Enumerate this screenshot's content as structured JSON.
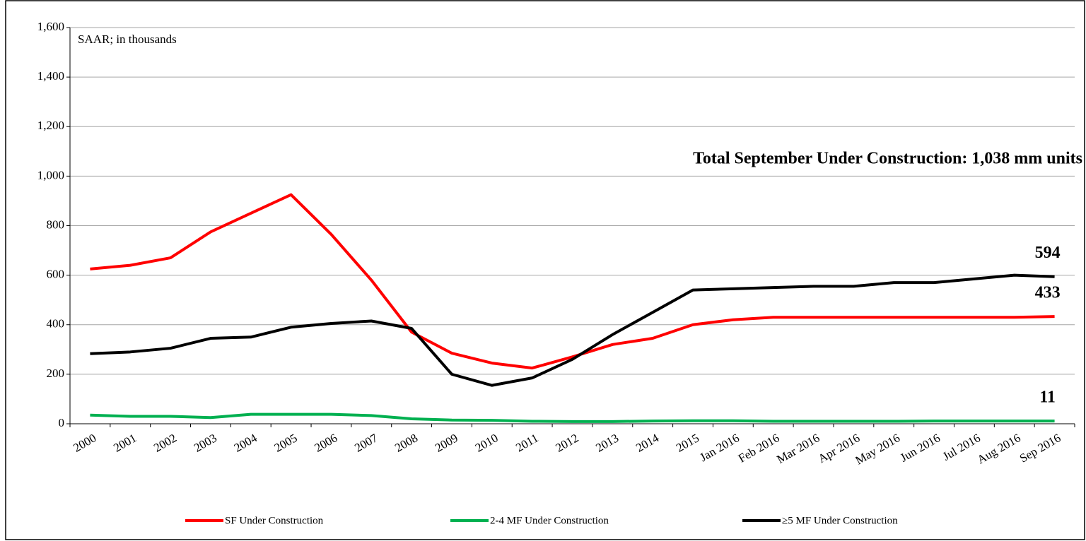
{
  "chart_data": {
    "type": "line",
    "annotations": [
      "SAAR; in thousands",
      "Total September Under Construction: 1,038 mm units"
    ],
    "categories": [
      "2000",
      "2001",
      "2002",
      "2003",
      "2004",
      "2005",
      "2006",
      "2007",
      "2008",
      "2009",
      "2010",
      "2011",
      "2012",
      "2013",
      "2014",
      "2015",
      "Jan 2016",
      "Feb 2016",
      "Mar 2016",
      "Apr 2016",
      "May 2016",
      "Jun 2016",
      "Jul 2016",
      "Aug 2016",
      "Sep 2016"
    ],
    "series": [
      {
        "name": "SF Under Construction",
        "color": "#ff0000",
        "values": [
          625,
          640,
          670,
          775,
          850,
          925,
          765,
          580,
          370,
          285,
          245,
          225,
          270,
          320,
          345,
          400,
          420,
          430,
          430,
          430,
          430,
          430,
          430,
          430,
          433
        ]
      },
      {
        "name": "2-4 MF Under Construction",
        "color": "#00b050",
        "values": [
          35,
          30,
          30,
          25,
          38,
          38,
          38,
          33,
          20,
          15,
          14,
          10,
          9,
          9,
          11,
          12,
          12,
          10,
          10,
          10,
          10,
          11,
          11,
          11,
          11
        ]
      },
      {
        "name": "≥5 MF Under Construction",
        "color": "#000000",
        "values": [
          283,
          290,
          305,
          345,
          350,
          390,
          405,
          415,
          385,
          200,
          155,
          185,
          260,
          360,
          450,
          540,
          545,
          550,
          555,
          555,
          570,
          570,
          585,
          600,
          594
        ]
      }
    ],
    "ylim": [
      0,
      1600
    ],
    "yticks": [
      0,
      200,
      400,
      600,
      800,
      {
        "value": 1000,
        "label": "1,000"
      },
      {
        "value": 1200,
        "label": "1,200"
      },
      {
        "value": 1400,
        "label": "1,400"
      },
      {
        "value": 1600,
        "label": "1,600"
      }
    ],
    "grid": true,
    "legend": "bottom",
    "labeled_points": "last"
  }
}
